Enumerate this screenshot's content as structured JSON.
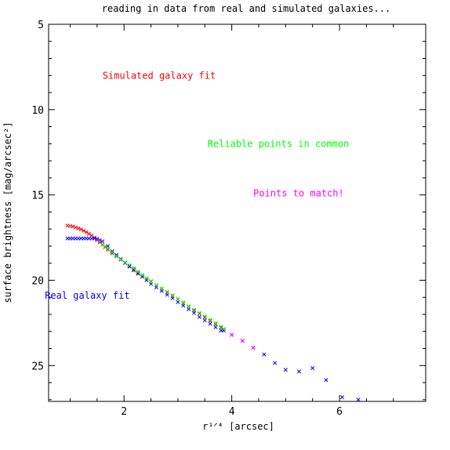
{
  "chart_data": {
    "type": "scatter",
    "title": "reading in data from real and simulated galaxies...",
    "xlabel": "r¹ᐟ⁴ [arcsec]",
    "ylabel": "surface brightness [mag/arcsec²]",
    "xlim": [
      0.6,
      7.6
    ],
    "ylim": [
      27.1,
      5
    ],
    "y_inverted": true,
    "x_ticks": [
      2,
      4,
      6
    ],
    "y_ticks": [
      5,
      10,
      15,
      20,
      25
    ],
    "grid": false,
    "marker": "x",
    "annotations": [
      {
        "text": "Simulated galaxy fit",
        "color": "#ff0000",
        "x": 1.6,
        "y": 8.0
      },
      {
        "text": "Reliable points in common",
        "color": "#00ff00",
        "x": 3.55,
        "y": 12.0
      },
      {
        "text": "Points to match!",
        "color": "#ff00ff",
        "x": 4.4,
        "y": 14.9
      },
      {
        "text": "Real galaxy fit",
        "color": "#0000ff",
        "x": 0.53,
        "y": 20.9
      }
    ],
    "series": [
      {
        "color": "#ff0000",
        "x": [
          0.95,
          1.0,
          1.05,
          1.1,
          1.15,
          1.2,
          1.25,
          1.3,
          1.35,
          1.4,
          1.45,
          1.5,
          1.55,
          1.6,
          1.65,
          1.7,
          1.78,
          1.86,
          1.94,
          2.02,
          2.1,
          2.18,
          2.26,
          2.34,
          2.42,
          2.5,
          2.6,
          2.7,
          2.8,
          2.9,
          3.0,
          3.1,
          3.2,
          3.3,
          3.4,
          3.5,
          3.6,
          3.7,
          3.8,
          3.85
        ],
        "y": [
          16.8,
          16.82,
          16.85,
          16.9,
          16.96,
          17.02,
          17.1,
          17.18,
          17.28,
          17.38,
          17.5,
          17.62,
          17.78,
          17.92,
          18.06,
          18.2,
          18.42,
          18.6,
          18.8,
          18.98,
          19.15,
          19.35,
          19.55,
          19.72,
          19.9,
          20.08,
          20.3,
          20.5,
          20.72,
          20.92,
          21.12,
          21.34,
          21.55,
          21.78,
          21.96,
          22.18,
          22.38,
          22.58,
          22.78,
          22.85
        ]
      },
      {
        "color": "#0000ff",
        "x": [
          0.95,
          1.0,
          1.05,
          1.1,
          1.15,
          1.2,
          1.25,
          1.3,
          1.35,
          1.4,
          1.45,
          1.5,
          1.55,
          1.6,
          1.7,
          1.78,
          1.86,
          1.94,
          2.02,
          2.1,
          2.18,
          2.26,
          2.34,
          2.42,
          2.5,
          2.6,
          2.7,
          2.8,
          2.9,
          3.0,
          3.1,
          3.2,
          3.3,
          3.4,
          3.5,
          3.6,
          3.7,
          3.8,
          3.85,
          4.0,
          4.2,
          4.4,
          4.6,
          4.8,
          5.0,
          5.25,
          5.5,
          5.75,
          6.05,
          6.35
        ],
        "y": [
          17.55,
          17.55,
          17.55,
          17.55,
          17.55,
          17.55,
          17.55,
          17.55,
          17.55,
          17.55,
          17.55,
          17.58,
          17.65,
          17.72,
          18.0,
          18.3,
          18.52,
          18.75,
          18.98,
          19.2,
          19.42,
          19.62,
          19.8,
          20.0,
          20.22,
          20.42,
          20.62,
          20.85,
          21.05,
          21.28,
          21.48,
          21.7,
          21.92,
          22.15,
          22.35,
          22.55,
          22.75,
          22.95,
          22.95,
          23.2,
          23.55,
          23.95,
          24.35,
          24.85,
          25.25,
          25.35,
          25.15,
          25.85,
          26.85,
          27.0
        ]
      },
      {
        "color": "#00ff00",
        "x": [
          1.55,
          1.6,
          1.65,
          1.7,
          1.78,
          1.86,
          1.94,
          2.02,
          2.1,
          2.18,
          2.26,
          2.34,
          2.42,
          2.5,
          2.6,
          2.7,
          2.8,
          2.9,
          3.0,
          3.1,
          3.2,
          3.3,
          3.4,
          3.5,
          3.6,
          3.7,
          3.8,
          3.85
        ],
        "y": [
          17.72,
          17.9,
          18.02,
          18.15,
          18.35,
          18.58,
          18.78,
          18.95,
          19.12,
          19.3,
          19.5,
          19.7,
          19.88,
          20.05,
          20.28,
          20.48,
          20.68,
          20.88,
          21.1,
          21.3,
          21.52,
          21.72,
          21.92,
          22.12,
          22.32,
          22.52,
          22.72,
          22.85
        ]
      },
      {
        "color": "#ff00ff",
        "x": [
          1.5,
          1.6,
          4.0,
          4.2,
          4.4
        ],
        "y": [
          17.65,
          17.75,
          23.2,
          23.55,
          23.95
        ]
      }
    ]
  }
}
